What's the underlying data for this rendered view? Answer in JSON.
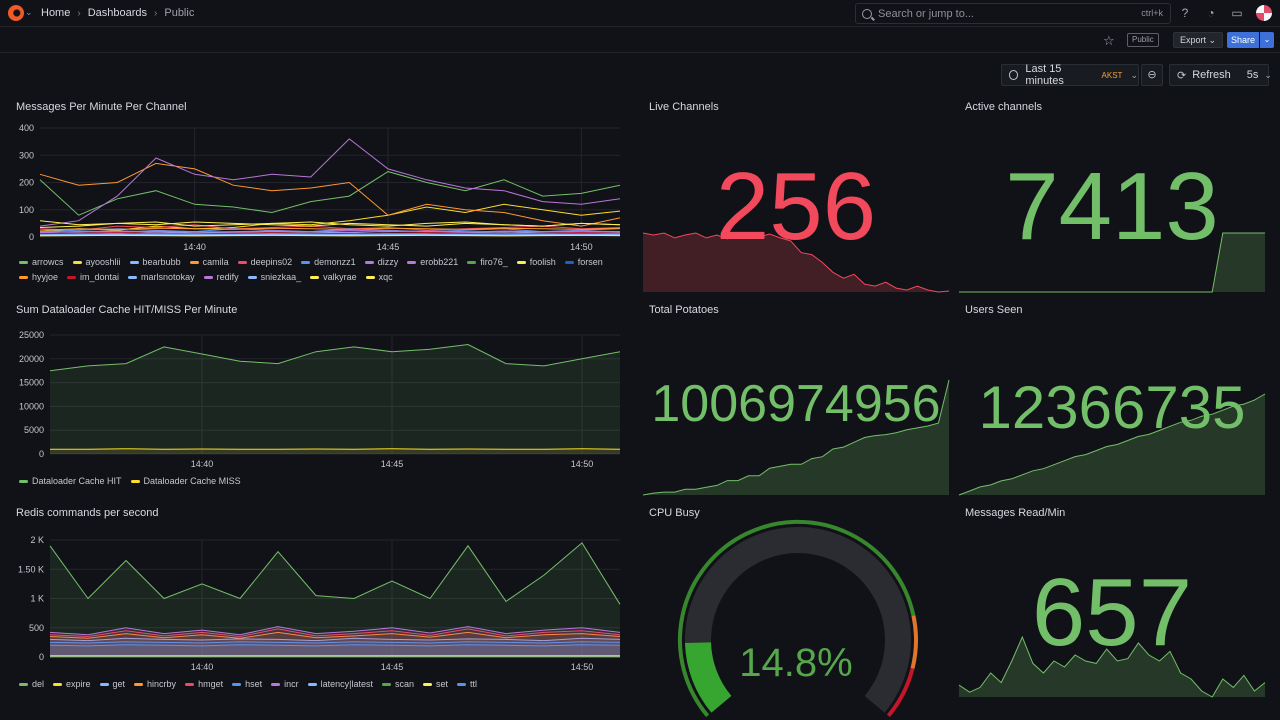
{
  "topbar": {
    "breadcrumbs": [
      "Home",
      "Dashboards",
      "Public"
    ],
    "search_placeholder": "Search or jump to...",
    "search_shortcut": "ctrl+k"
  },
  "toolbar": {
    "public_badge": "Public",
    "export_label": "Export",
    "share_label": "Share",
    "time_range": "Last 15 minutes",
    "timezone": "AKST",
    "refresh_label": "Refresh",
    "refresh_interval": "5s"
  },
  "colors": {
    "green": "#73bf69",
    "yellow": "#fade2a",
    "blue": "#5794f2",
    "orange": "#ff9830",
    "red": "#f2495c",
    "purple": "#b877d9",
    "darkgreen": "#56a64b",
    "darkred": "#c4162a",
    "lightblue": "#8ab8ff",
    "darkblue": "#1f60c4",
    "lightyellow": "#ffee52"
  },
  "panels": {
    "messages": {
      "title": "Messages Per Minute Per Channel",
      "chart_data": {
        "type": "line",
        "x": [
          "14:36",
          "14:37",
          "14:38",
          "14:39",
          "14:40",
          "14:41",
          "14:42",
          "14:43",
          "14:44",
          "14:45",
          "14:46",
          "14:47",
          "14:48",
          "14:49",
          "14:50",
          "14:51"
        ],
        "xticks": [
          "14:40",
          "14:45",
          "14:50"
        ],
        "yticks": [
          "0",
          "100",
          "200",
          "300",
          "400"
        ],
        "ylim": [
          0,
          400
        ],
        "series": [
          {
            "name": "arrowcs",
            "color": "green",
            "values": [
              210,
              80,
              140,
              170,
              120,
              110,
              90,
              130,
              150,
              240,
              200,
              170,
              210,
              150,
              160,
              190
            ]
          },
          {
            "name": "ayooshlii",
            "color": "yellow",
            "values": [
              20,
              30,
              25,
              40,
              30,
              35,
              50,
              45,
              60,
              80,
              110,
              90,
              120,
              100,
              80,
              95
            ]
          },
          {
            "name": "bearbubb",
            "color": "lightblue",
            "values": [
              10,
              15,
              12,
              18,
              14,
              16,
              20,
              18,
              15,
              12,
              14,
              16,
              18,
              15,
              14,
              16
            ]
          },
          {
            "name": "camila",
            "color": "orange",
            "values": [
              230,
              190,
              200,
              270,
              250,
              190,
              170,
              180,
              200,
              80,
              120,
              100,
              90,
              60,
              40,
              70
            ]
          },
          {
            "name": "deepins02",
            "color": "red",
            "values": [
              30,
              25,
              40,
              35,
              45,
              30,
              35,
              40,
              30,
              35,
              25,
              30,
              35,
              40,
              30,
              35
            ]
          },
          {
            "name": "demonzz1",
            "color": "blue",
            "values": [
              20,
              25,
              30,
              25,
              20,
              30,
              25,
              20,
              30,
              25,
              20,
              25,
              30,
              20,
              25,
              30
            ]
          },
          {
            "name": "dizzy",
            "color": "purple",
            "values": [
              40,
              60,
              150,
              290,
              230,
              210,
              230,
              220,
              360,
              250,
              210,
              180,
              170,
              130,
              120,
              140
            ]
          },
          {
            "name": "erobb221",
            "color": "purple",
            "values": [
              15,
              20,
              18,
              22,
              20,
              18,
              22,
              20,
              25,
              22,
              20,
              18,
              22,
              20,
              18,
              20
            ]
          },
          {
            "name": "firo76_",
            "color": "darkgreen",
            "values": [
              10,
              12,
              15,
              12,
              10,
              12,
              15,
              12,
              10,
              12,
              15,
              12,
              10,
              12,
              15,
              12
            ]
          },
          {
            "name": "foolish",
            "color": "lightyellow",
            "values": [
              35,
              40,
              50,
              45,
              55,
              50,
              45,
              40,
              50,
              45,
              40,
              50,
              45,
              40,
              50,
              45
            ]
          },
          {
            "name": "forsen",
            "color": "darkblue",
            "values": [
              5,
              8,
              6,
              8,
              7,
              6,
              8,
              7,
              6,
              8,
              7,
              6,
              8,
              7,
              6,
              8
            ]
          },
          {
            "name": "hyyjoe",
            "color": "orange",
            "values": [
              25,
              30,
              28,
              32,
              30,
              28,
              32,
              30,
              28,
              32,
              30,
              28,
              32,
              30,
              28,
              32
            ]
          },
          {
            "name": "im_dontai",
            "color": "darkred",
            "values": [
              12,
              14,
              16,
              14,
              12,
              14,
              16,
              14,
              12,
              14,
              16,
              14,
              12,
              14,
              16,
              14
            ]
          },
          {
            "name": "marlsnotokay",
            "color": "lightblue",
            "values": [
              8,
              10,
              9,
              11,
              10,
              9,
              11,
              10,
              9,
              11,
              10,
              9,
              11,
              10,
              9,
              11
            ]
          },
          {
            "name": "redify",
            "color": "purple",
            "values": [
              18,
              20,
              22,
              20,
              18,
              20,
              22,
              20,
              18,
              20,
              22,
              20,
              18,
              20,
              22,
              20
            ]
          },
          {
            "name": "sniezkaa_",
            "color": "lightblue",
            "values": [
              6,
              7,
              8,
              7,
              6,
              7,
              8,
              7,
              6,
              7,
              8,
              7,
              6,
              7,
              8,
              7
            ]
          },
          {
            "name": "valkyrae",
            "color": "lightyellow",
            "values": [
              4,
              5,
              6,
              5,
              4,
              5,
              6,
              5,
              4,
              5,
              6,
              5,
              4,
              5,
              6,
              5
            ]
          },
          {
            "name": "xqc",
            "color": "lightyellow",
            "values": [
              60,
              45,
              50,
              55,
              40,
              45,
              50,
              55,
              45,
              40,
              50,
              55,
              45,
              40,
              50,
              45
            ]
          }
        ]
      }
    },
    "live_channels": {
      "title": "Live Channels",
      "value": "256",
      "color": "red",
      "chart_data": {
        "type": "area",
        "values": [
          60,
          58,
          60,
          55,
          58,
          60,
          55,
          58,
          54,
          57,
          60,
          56,
          59,
          55,
          52,
          40,
          38,
          30,
          20,
          14,
          18,
          8,
          6,
          10,
          4,
          2,
          6,
          2,
          0,
          1
        ]
      }
    },
    "active_channels": {
      "title": "Active channels",
      "value": "7413",
      "color": "green",
      "chart_data": {
        "type": "area",
        "values": [
          0,
          0,
          0,
          0,
          0,
          0,
          0,
          0,
          0,
          0,
          0,
          0,
          0,
          0,
          0,
          0,
          0,
          0,
          0,
          0,
          0,
          0,
          0,
          0,
          0,
          60,
          60,
          60,
          60,
          60
        ]
      }
    },
    "dataloader": {
      "title": "Sum Dataloader Cache HIT/MISS Per Minute",
      "chart_data": {
        "type": "line",
        "x": [
          "14:36",
          "14:37",
          "14:38",
          "14:39",
          "14:40",
          "14:41",
          "14:42",
          "14:43",
          "14:44",
          "14:45",
          "14:46",
          "14:47",
          "14:48",
          "14:49",
          "14:50",
          "14:51"
        ],
        "xticks": [
          "14:40",
          "14:45",
          "14:50"
        ],
        "yticks": [
          "0",
          "5000",
          "10000",
          "15000",
          "20000",
          "25000"
        ],
        "ylim": [
          0,
          25000
        ],
        "series": [
          {
            "name": "Dataloader Cache HIT",
            "color": "green",
            "values": [
              17500,
              18500,
              19000,
              22500,
              21000,
              19500,
              19000,
              21500,
              22500,
              21500,
              22000,
              23000,
              19000,
              18500,
              20000,
              21500
            ]
          },
          {
            "name": "Dataloader Cache MISS",
            "color": "yellow",
            "values": [
              1000,
              1000,
              1100,
              1000,
              1050,
              1000,
              1000,
              1050,
              1000,
              1100,
              1000,
              1050,
              1000,
              1000,
              1100,
              1000
            ]
          }
        ]
      }
    },
    "total_potatoes": {
      "title": "Total Potatoes",
      "value": "1006974956",
      "color": "green",
      "chart_data": {
        "type": "area",
        "values": [
          0,
          2,
          3,
          3,
          6,
          6,
          8,
          10,
          15,
          15,
          20,
          20,
          28,
          30,
          32,
          32,
          38,
          40,
          48,
          50,
          55,
          60,
          62,
          63,
          65,
          68,
          70,
          72,
          75,
          120
        ]
      }
    },
    "users_seen": {
      "title": "Users Seen",
      "value": "12366735",
      "color": "green",
      "chart_data": {
        "type": "area",
        "values": [
          0,
          4,
          8,
          10,
          14,
          16,
          20,
          24,
          26,
          30,
          34,
          38,
          40,
          44,
          48,
          50,
          54,
          58,
          60,
          64,
          68,
          72,
          74,
          78,
          80,
          84,
          88,
          90,
          94,
          100
        ]
      }
    },
    "redis": {
      "title": "Redis commands per second",
      "chart_data": {
        "type": "area",
        "x": [
          "14:36",
          "14:37",
          "14:38",
          "14:39",
          "14:40",
          "14:41",
          "14:42",
          "14:43",
          "14:44",
          "14:45",
          "14:46",
          "14:47",
          "14:48",
          "14:49",
          "14:50",
          "14:51"
        ],
        "xticks": [
          "14:40",
          "14:45",
          "14:50"
        ],
        "yticks": [
          "0",
          "500",
          "1 K",
          "1.50 K",
          "2 K"
        ],
        "ylim": [
          0,
          2000
        ],
        "series": [
          {
            "name": "del",
            "color": "green",
            "values": [
              1900,
              1000,
              1650,
              1000,
              1250,
              1000,
              1800,
              1050,
              1000,
              1300,
              1000,
              1900,
              950,
              1400,
              1950,
              900
            ]
          },
          {
            "name": "expire",
            "color": "yellow",
            "values": [
              5,
              5,
              5,
              5,
              5,
              5,
              5,
              5,
              5,
              5,
              5,
              5,
              5,
              5,
              5,
              5
            ]
          },
          {
            "name": "get",
            "color": "lightblue",
            "values": [
              300,
              280,
              320,
              300,
              290,
              310,
              300,
              280,
              320,
              300,
              290,
              310,
              300,
              280,
              320,
              300
            ]
          },
          {
            "name": "hincrby",
            "color": "orange",
            "values": [
              350,
              320,
              400,
              330,
              380,
              320,
              420,
              330,
              360,
              400,
              340,
              420,
              330,
              380,
              400,
              350
            ]
          },
          {
            "name": "hmget",
            "color": "red",
            "values": [
              380,
              350,
              450,
              360,
              420,
              350,
              480,
              360,
              400,
              450,
              370,
              480,
              360,
              420,
              450,
              380
            ]
          },
          {
            "name": "hset",
            "color": "blue",
            "values": [
              250,
              240,
              260,
              250,
              240,
              260,
              250,
              240,
              260,
              250,
              240,
              260,
              250,
              240,
              260,
              250
            ]
          },
          {
            "name": "incr",
            "color": "purple",
            "values": [
              420,
              380,
              500,
              400,
              460,
              380,
              520,
              400,
              440,
              500,
              410,
              520,
              400,
              460,
              500,
              420
            ]
          },
          {
            "name": "latency|latest",
            "color": "lightblue",
            "values": [
              10,
              10,
              10,
              10,
              10,
              10,
              10,
              10,
              10,
              10,
              10,
              10,
              10,
              10,
              10,
              10
            ]
          },
          {
            "name": "scan",
            "color": "darkgreen",
            "values": [
              15,
              15,
              15,
              15,
              15,
              15,
              15,
              15,
              15,
              15,
              15,
              15,
              15,
              15,
              15,
              15
            ]
          },
          {
            "name": "set",
            "color": "lightyellow",
            "values": [
              20,
              20,
              20,
              20,
              20,
              20,
              20,
              20,
              20,
              20,
              20,
              20,
              20,
              20,
              20,
              20
            ]
          },
          {
            "name": "ttl",
            "color": "blue",
            "values": [
              200,
              190,
              210,
              200,
              190,
              210,
              200,
              190,
              210,
              200,
              190,
              210,
              200,
              190,
              210,
              200
            ]
          }
        ]
      }
    },
    "cpu_busy": {
      "title": "CPU Busy",
      "value": "14.8%",
      "percent": 14.8,
      "color": "green"
    },
    "messages_read": {
      "title": "Messages Read/Min",
      "value": "657",
      "color": "green",
      "chart_data": {
        "type": "area",
        "values": [
          10,
          4,
          8,
          20,
          12,
          30,
          50,
          28,
          20,
          30,
          25,
          35,
          30,
          28,
          40,
          30,
          32,
          45,
          35,
          30,
          38,
          20,
          15,
          5,
          0,
          15,
          8,
          18,
          5,
          12
        ]
      }
    }
  }
}
